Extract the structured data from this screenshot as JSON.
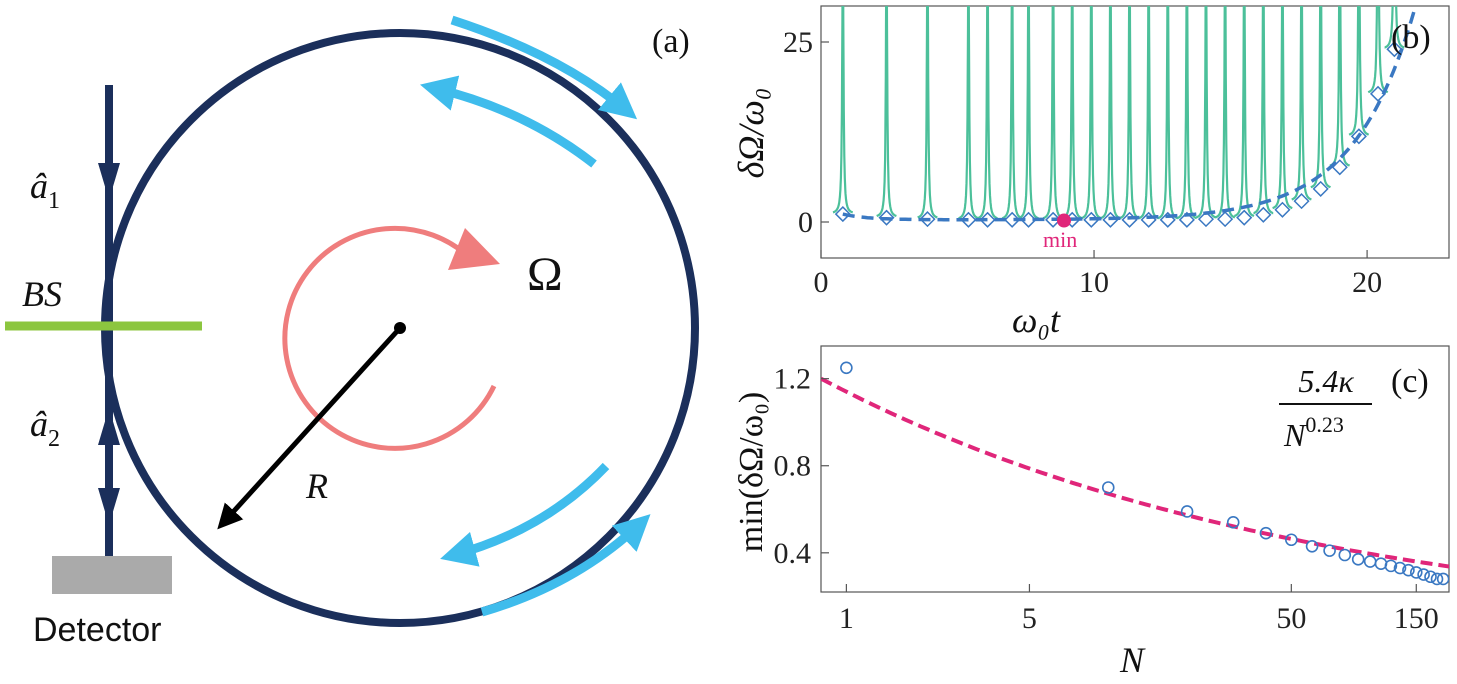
{
  "panel_a": {
    "label": "(a)",
    "mode1": "â",
    "mode1_sub": "1",
    "mode2": "â",
    "mode2_sub": "2",
    "beamsplitter": "BS",
    "detector": "Detector",
    "rotation": "Ω",
    "radius": "R",
    "colors": {
      "ring": "#1b2f5b",
      "arrows": "#3fbcec",
      "rotation": "#ef7d7d",
      "bs": "#8cc63f",
      "detector": "#aaaaaa"
    }
  },
  "panel_b": {
    "label": "(b)",
    "ylabel": "δΩ/ω₀",
    "xlabel": "ω₀t",
    "min_label": "min",
    "colors": {
      "curves": "#4cc09a",
      "envelope": "#3a78c2",
      "min": "#e0267a"
    }
  },
  "panel_c": {
    "label": "(c)",
    "ylabel": "min(δΩ/ω₀)",
    "xlabel": "N",
    "formula_numerator": "5.4κ",
    "formula_denominator": "N",
    "formula_exponent": "0.23",
    "colors": {
      "points": "#3a78c2",
      "fit": "#e0267a"
    }
  },
  "chart_data": [
    {
      "type": "line",
      "panel": "b",
      "xlabel": "ω₀t",
      "ylabel": "δΩ/ω₀",
      "xlim": [
        0,
        23
      ],
      "ylim": [
        -5,
        30
      ],
      "xticks": [
        0,
        10,
        20
      ],
      "yticks": [
        0,
        25
      ],
      "min_point": {
        "x": 8.9,
        "y": 0.2
      },
      "resonances": [
        0.8,
        2.4,
        3.9,
        5.4,
        6.1,
        7.0,
        7.6,
        8.5,
        9.2,
        9.9,
        10.6,
        11.3,
        12.0,
        12.7,
        13.4,
        14.1,
        14.8,
        15.5,
        16.2,
        16.9,
        17.6,
        18.3,
        19.0,
        19.7,
        20.4,
        21.0
      ],
      "envelope_markers": [
        {
          "x": 0.8,
          "y": 1.1
        },
        {
          "x": 2.4,
          "y": 0.6
        },
        {
          "x": 3.9,
          "y": 0.4
        },
        {
          "x": 5.4,
          "y": 0.3
        },
        {
          "x": 6.1,
          "y": 0.3
        },
        {
          "x": 7.0,
          "y": 0.3
        },
        {
          "x": 7.6,
          "y": 0.3
        },
        {
          "x": 8.5,
          "y": 0.3
        },
        {
          "x": 9.2,
          "y": 0.3
        },
        {
          "x": 9.9,
          "y": 0.3
        },
        {
          "x": 10.6,
          "y": 0.3
        },
        {
          "x": 11.3,
          "y": 0.3
        },
        {
          "x": 12.0,
          "y": 0.3
        },
        {
          "x": 12.7,
          "y": 0.3
        },
        {
          "x": 13.4,
          "y": 0.3
        },
        {
          "x": 14.1,
          "y": 0.4
        },
        {
          "x": 14.8,
          "y": 0.4
        },
        {
          "x": 15.5,
          "y": 0.6
        },
        {
          "x": 16.2,
          "y": 1.0
        },
        {
          "x": 16.9,
          "y": 1.7
        },
        {
          "x": 17.6,
          "y": 2.9
        },
        {
          "x": 18.3,
          "y": 4.6
        },
        {
          "x": 19.0,
          "y": 7.6
        },
        {
          "x": 19.7,
          "y": 11.9
        },
        {
          "x": 20.4,
          "y": 17.8
        },
        {
          "x": 21.0,
          "y": 24.0
        }
      ]
    },
    {
      "type": "scatter",
      "panel": "c",
      "xlabel": "N",
      "ylabel": "min(δΩ/ω₀)",
      "xscale": "log",
      "xlim": [
        0.8,
        200
      ],
      "ylim": [
        0.22,
        1.35
      ],
      "xticks": [
        1,
        5,
        50,
        150
      ],
      "yticks": [
        0.4,
        0.8,
        1.2
      ],
      "points": [
        {
          "x": 1,
          "y": 1.25
        },
        {
          "x": 10,
          "y": 0.7
        },
        {
          "x": 20,
          "y": 0.59
        },
        {
          "x": 30,
          "y": 0.54
        },
        {
          "x": 40,
          "y": 0.49
        },
        {
          "x": 50,
          "y": 0.46
        },
        {
          "x": 60,
          "y": 0.43
        },
        {
          "x": 70,
          "y": 0.41
        },
        {
          "x": 80,
          "y": 0.39
        },
        {
          "x": 90,
          "y": 0.37
        },
        {
          "x": 100,
          "y": 0.36
        },
        {
          "x": 110,
          "y": 0.35
        },
        {
          "x": 120,
          "y": 0.34
        },
        {
          "x": 130,
          "y": 0.33
        },
        {
          "x": 140,
          "y": 0.32
        },
        {
          "x": 150,
          "y": 0.31
        },
        {
          "x": 160,
          "y": 0.3
        },
        {
          "x": 170,
          "y": 0.29
        },
        {
          "x": 180,
          "y": 0.28
        },
        {
          "x": 190,
          "y": 0.28
        }
      ],
      "fit": {
        "coefficient": 1.14,
        "exponent": -0.23
      }
    }
  ]
}
